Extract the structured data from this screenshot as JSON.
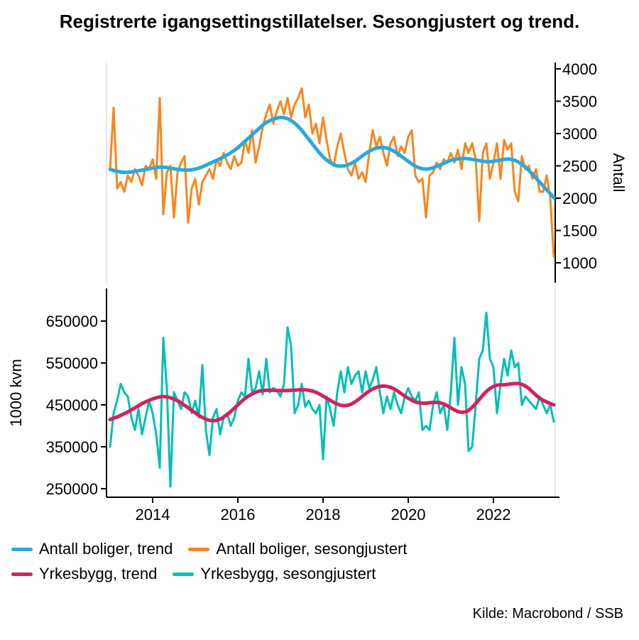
{
  "title": "Registrerte igangsettingstillatelser. Sesongjustert og trend.",
  "source": "Kilde: Macrobond / SSB",
  "colors": {
    "antall_trend": "#2ba8dd",
    "antall_sesongjustert": "#f8861d",
    "yrkesbygg_trend": "#d0235f",
    "yrkesbygg_sesongjustert": "#00bfb4",
    "axis": "#000000"
  },
  "legend": [
    {
      "label": "Antall boliger, trend",
      "color": "#2ba8dd"
    },
    {
      "label": "Antall boliger, sesongjustert",
      "color": "#f8861d"
    },
    {
      "label": "Yrkesbygg, trend",
      "color": "#d0235f"
    },
    {
      "label": "Yrkesbygg, sesongjustert",
      "color": "#00bfb4"
    }
  ],
  "chart_data": [
    {
      "type": "line",
      "panel": "top",
      "ylabel": "Antall",
      "xlabel": "",
      "ylim": [
        1000,
        4000
      ],
      "xlim": [
        2013.0,
        2023.5
      ],
      "grid": false,
      "legend_position": "bottom-left",
      "yticks": [
        1000,
        1500,
        2000,
        2500,
        3000,
        3500,
        4000
      ],
      "xticks": [
        2014,
        2016,
        2018,
        2020,
        2022
      ],
      "x_start": 2013.0,
      "frequency": "monthly",
      "series": [
        {
          "id": "antall-boliger-sesongjustert",
          "name": "Antall boliger, sesongjustert",
          "color": "#f8861d",
          "width": 3,
          "values": [
            2450,
            3400,
            2150,
            2250,
            2100,
            2350,
            2250,
            2450,
            2350,
            2200,
            2500,
            2450,
            2600,
            2300,
            3550,
            1750,
            2400,
            2500,
            1700,
            2400,
            2550,
            2650,
            1620,
            2150,
            2300,
            1900,
            2250,
            2350,
            2450,
            2300,
            2600,
            2500,
            2700,
            2550,
            2450,
            2650,
            2500,
            2550,
            2900,
            2700,
            3050,
            2550,
            2800,
            3100,
            3300,
            3450,
            3150,
            3350,
            3500,
            3300,
            3550,
            3250,
            3450,
            3550,
            3700,
            3250,
            3450,
            3000,
            3150,
            2850,
            3250,
            2900,
            2600,
            2500,
            2800,
            3000,
            2700,
            2450,
            2350,
            2550,
            2300,
            2400,
            2250,
            2700,
            3050,
            2800,
            2950,
            2700,
            2500,
            2850,
            2950,
            2650,
            2800,
            2700,
            2950,
            3050,
            2350,
            2250,
            2300,
            1700,
            2350,
            2400,
            2550,
            2450,
            2600,
            2550,
            2700,
            2550,
            2750,
            2450,
            2850,
            2700,
            2850,
            2600,
            1650,
            2700,
            2850,
            2300,
            2550,
            2850,
            2300,
            2900,
            2750,
            2850,
            2100,
            1950,
            2650,
            2450,
            2500,
            2300,
            2450,
            2100,
            2100,
            2350,
            2000,
            1100
          ]
        },
        {
          "id": "antall-boliger-trend",
          "name": "Antall boliger, trend",
          "color": "#2ba8dd",
          "width": 5,
          "values": [
            2450,
            2430,
            2415,
            2405,
            2400,
            2400,
            2405,
            2415,
            2425,
            2435,
            2445,
            2455,
            2465,
            2475,
            2480,
            2480,
            2475,
            2465,
            2455,
            2445,
            2440,
            2435,
            2435,
            2440,
            2450,
            2465,
            2485,
            2510,
            2535,
            2560,
            2585,
            2610,
            2640,
            2670,
            2700,
            2740,
            2780,
            2830,
            2880,
            2930,
            2980,
            3030,
            3080,
            3130,
            3170,
            3200,
            3225,
            3240,
            3250,
            3245,
            3230,
            3200,
            3160,
            3110,
            3050,
            2980,
            2910,
            2840,
            2770,
            2700,
            2640,
            2590,
            2550,
            2520,
            2500,
            2495,
            2500,
            2515,
            2540,
            2570,
            2610,
            2650,
            2690,
            2725,
            2755,
            2775,
            2785,
            2785,
            2775,
            2755,
            2725,
            2690,
            2650,
            2610,
            2570,
            2530,
            2495,
            2470,
            2455,
            2450,
            2455,
            2470,
            2490,
            2515,
            2540,
            2565,
            2585,
            2600,
            2610,
            2615,
            2615,
            2610,
            2600,
            2590,
            2580,
            2570,
            2565,
            2565,
            2570,
            2580,
            2590,
            2600,
            2605,
            2600,
            2585,
            2560,
            2525,
            2480,
            2430,
            2370,
            2310,
            2250,
            2190,
            2130,
            2070,
            2010
          ]
        }
      ]
    },
    {
      "type": "line",
      "panel": "bottom",
      "ylabel": "1000 kvm",
      "xlabel": "",
      "ylim": [
        250000,
        650000
      ],
      "xlim": [
        2013.0,
        2023.5
      ],
      "grid": false,
      "legend_position": "bottom-left",
      "yticks": [
        250000,
        350000,
        450000,
        550000,
        650000
      ],
      "xticks": [
        2014,
        2016,
        2018,
        2020,
        2022
      ],
      "x_start": 2013.0,
      "frequency": "monthly",
      "series": [
        {
          "id": "yrkesbygg-sesongjustert",
          "name": "Yrkesbygg, sesongjustert",
          "color": "#00bfb4",
          "width": 3,
          "values": [
            350000,
            430000,
            460000,
            500000,
            480000,
            470000,
            420000,
            390000,
            440000,
            380000,
            420000,
            460000,
            430000,
            380000,
            300000,
            610000,
            490000,
            255000,
            480000,
            460000,
            440000,
            480000,
            470000,
            430000,
            460000,
            420000,
            545000,
            390000,
            330000,
            420000,
            440000,
            380000,
            420000,
            430000,
            400000,
            420000,
            460000,
            480000,
            470000,
            560000,
            480000,
            490000,
            530000,
            475000,
            560000,
            480000,
            490000,
            485000,
            470000,
            500000,
            635000,
            590000,
            430000,
            450000,
            500000,
            445000,
            460000,
            440000,
            430000,
            450000,
            320000,
            470000,
            440000,
            400000,
            480000,
            530000,
            480000,
            540000,
            500000,
            520000,
            530000,
            480000,
            530000,
            490000,
            510000,
            540000,
            480000,
            430000,
            470000,
            440000,
            480000,
            450000,
            430000,
            470000,
            490000,
            470000,
            460000,
            480000,
            390000,
            400000,
            390000,
            450000,
            480000,
            430000,
            450000,
            390000,
            480000,
            610000,
            450000,
            540000,
            500000,
            340000,
            350000,
            450000,
            560000,
            580000,
            670000,
            560000,
            540000,
            430000,
            500000,
            560000,
            520000,
            580000,
            540000,
            550000,
            450000,
            470000,
            460000,
            450000,
            440000,
            470000,
            450000,
            430000,
            450000,
            410000
          ]
        },
        {
          "id": "yrkesbygg-trend",
          "name": "Yrkesbygg, trend",
          "color": "#d0235f",
          "width": 5,
          "values": [
            415000,
            418000,
            421000,
            425000,
            429000,
            433000,
            438000,
            443000,
            448000,
            453000,
            457000,
            461000,
            464000,
            467000,
            469000,
            470000,
            469000,
            467000,
            464000,
            460000,
            455000,
            449000,
            443000,
            437000,
            431000,
            425000,
            420000,
            416000,
            413000,
            412000,
            413000,
            416000,
            421000,
            427000,
            434000,
            442000,
            450000,
            458000,
            465000,
            471000,
            476000,
            480000,
            483000,
            484000,
            485000,
            485000,
            485000,
            484000,
            484000,
            484000,
            484000,
            485000,
            485000,
            486000,
            486000,
            486000,
            485000,
            483000,
            480000,
            476000,
            471000,
            466000,
            461000,
            456000,
            452000,
            449000,
            448000,
            449000,
            452000,
            457000,
            463000,
            470000,
            477000,
            483000,
            488000,
            492000,
            494000,
            495000,
            494000,
            492000,
            488000,
            483000,
            477000,
            471000,
            466000,
            461000,
            457000,
            455000,
            454000,
            454000,
            455000,
            456000,
            456000,
            455000,
            452000,
            448000,
            443000,
            438000,
            434000,
            432000,
            433000,
            437000,
            444000,
            453000,
            463000,
            473000,
            482000,
            489000,
            494000,
            497000,
            498000,
            498000,
            499000,
            500000,
            501000,
            501000,
            499000,
            495000,
            489000,
            481000,
            473000,
            466000,
            461000,
            457000,
            453000,
            450000
          ]
        }
      ]
    }
  ]
}
